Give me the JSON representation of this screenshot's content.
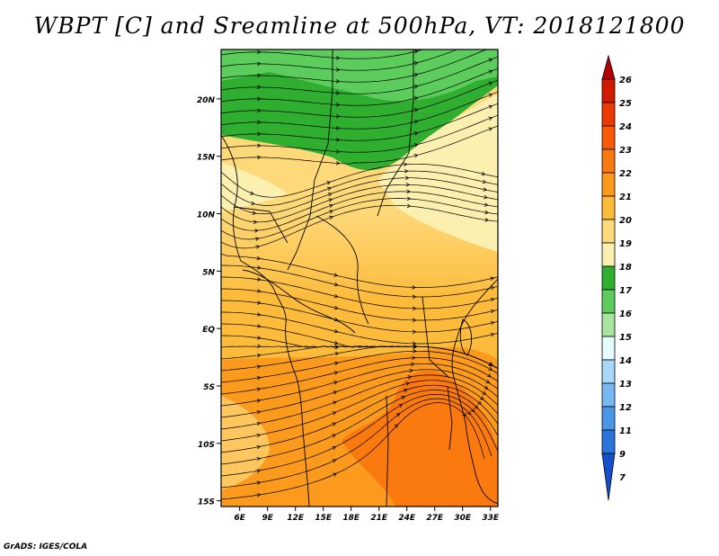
{
  "title": "WBPT [C] and Sreamline at 500hPa, VT: 2018121800",
  "credit": "GrADS: IGES/COLA",
  "map": {
    "lat_labels": [
      "20N",
      "15N",
      "10N",
      "5N",
      "EQ",
      "5S",
      "10S",
      "15S"
    ],
    "lon_labels": [
      "6E",
      "9E",
      "12E",
      "15E",
      "18E",
      "21E",
      "24E",
      "27E",
      "30E",
      "33E"
    ],
    "lat_values": [
      20,
      15,
      10,
      5,
      0,
      -5,
      -10,
      -15
    ],
    "lon_values": [
      6,
      9,
      12,
      15,
      18,
      21,
      24,
      27,
      30,
      33
    ]
  },
  "colorbar": {
    "labels": [
      "26",
      "25",
      "24",
      "23",
      "22",
      "21",
      "20",
      "19",
      "18",
      "17",
      "16",
      "15",
      "14",
      "13",
      "12",
      "11",
      "9",
      "7"
    ],
    "colors": [
      "#b40000",
      "#d21a00",
      "#ec3a00",
      "#f85a05",
      "#fb7a10",
      "#fb9a1c",
      "#fdbb3c",
      "#fdd97a",
      "#fbf0b0",
      "#2fae2f",
      "#5ccc5c",
      "#a8e6a0",
      "#e6fbfb",
      "#a8d8f8",
      "#78b8f2",
      "#4c96ea",
      "#2a74dc",
      "#1450c8"
    ]
  }
}
